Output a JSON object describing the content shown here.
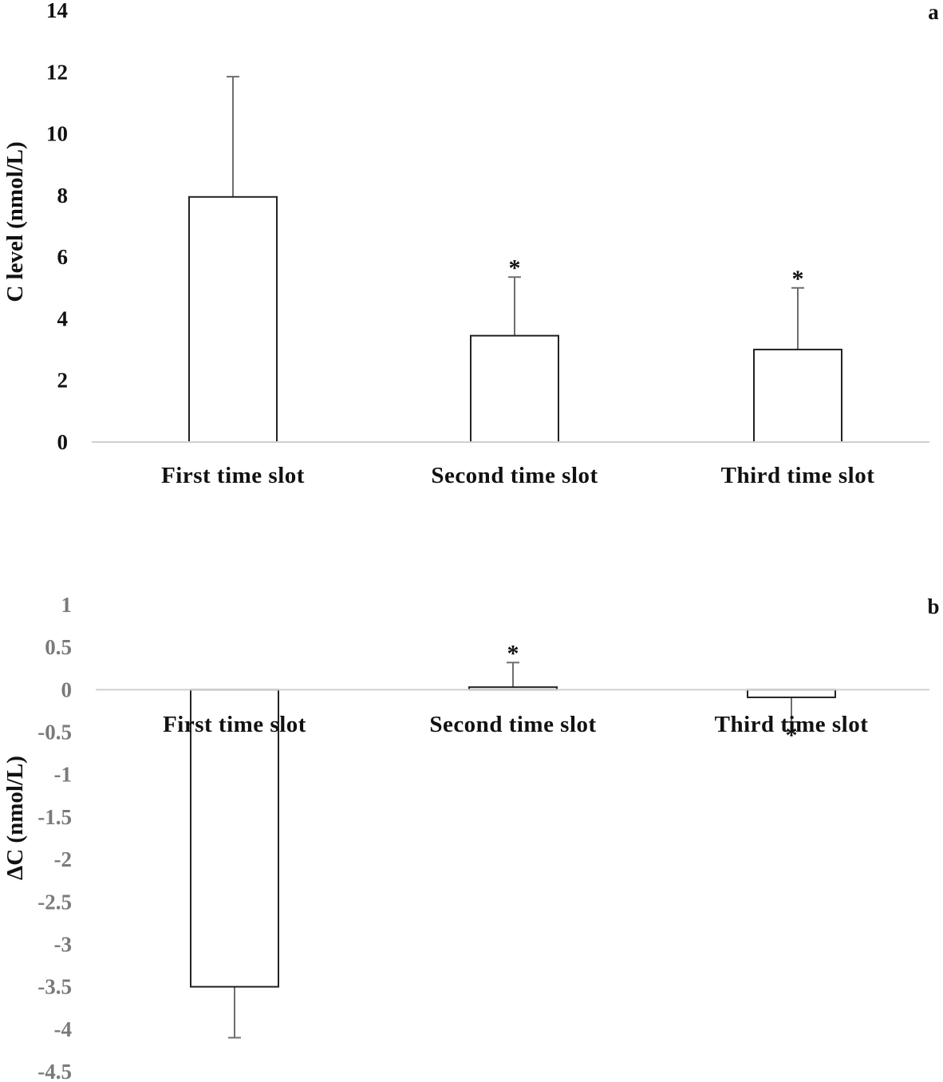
{
  "chart_data": [
    {
      "type": "bar",
      "panel_label": "a",
      "title": "",
      "xlabel": "",
      "ylabel": "C level (nmol/L)",
      "ylim": [
        0,
        14
      ],
      "yticks": [
        "0",
        "2",
        "4",
        "6",
        "8",
        "10",
        "12",
        "14"
      ],
      "categories": [
        "First time slot",
        "Second time slot",
        "Third time slot"
      ],
      "series": [
        {
          "name": "C level",
          "values": [
            7.95,
            3.45,
            3.0
          ],
          "error_upper": [
            3.9,
            1.9,
            2.0
          ],
          "significance": [
            "",
            "*",
            "*"
          ]
        }
      ],
      "grid": false
    },
    {
      "type": "bar",
      "panel_label": "b",
      "title": "",
      "xlabel": "",
      "ylabel": "ΔC (nmol/L)",
      "ylim": [
        -4.5,
        1
      ],
      "yticks": [
        "1",
        "0.5",
        "0",
        "-0.5",
        "-1",
        "-1.5",
        "-2",
        "-2.5",
        "-3",
        "-3.5",
        "-4",
        "-4.5"
      ],
      "categories": [
        "First time slot",
        "Second time slot",
        "Third time slot"
      ],
      "series": [
        {
          "name": "ΔC",
          "values": [
            -3.5,
            0.03,
            -0.09
          ],
          "error": [
            0.6,
            0.29,
            0.29
          ],
          "significance": [
            "",
            "*",
            "*"
          ]
        }
      ],
      "grid": false
    }
  ]
}
